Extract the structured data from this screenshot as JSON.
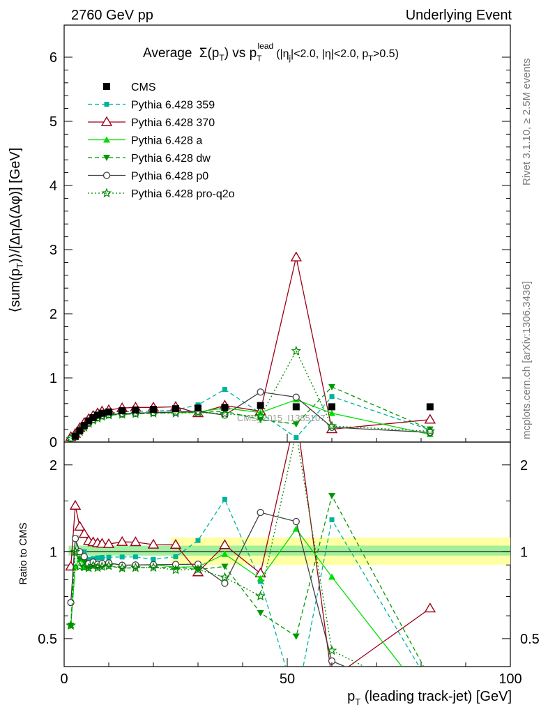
{
  "header": {
    "left": "2760 GeV pp",
    "right": "Underlying Event"
  },
  "plot_title": {
    "main": "Average",
    "sigma": "Σ(p",
    "sub_t": "T",
    "vs": ") vs p",
    "lead_sup": "lead",
    "lead_sub": "T",
    "cuts": "(|η",
    "cuts_sub": "j",
    "cuts_rest": "|<2.0, |η|<2.0, p",
    "cuts_sub2": "T",
    "cuts_end": ">0.5)"
  },
  "side_labels": {
    "rivet": "Rivet 3.1.10, ≥ 2.5M events",
    "mcplots": "mcplots.cern.ch [arXiv:1306.3436]"
  },
  "watermark": "CMS_2015_I1385107",
  "axes": {
    "ylabel_main": "⟨sum(p_T)⟩/[ΔηΔ(Δφ)] [GeV]",
    "ylabel_ratio": "Ratio to CMS",
    "xlabel": "p_T (leading track-jet) [GeV]",
    "x_ticks": [
      "0",
      "50",
      "100"
    ],
    "y_ticks_main": [
      "0",
      "1",
      "2",
      "3",
      "4",
      "5",
      "6"
    ],
    "y_ticks_ratio": [
      "0.5",
      "1",
      "2"
    ]
  },
  "chart_data": {
    "type": "scatter",
    "xlim": [
      0,
      100
    ],
    "ylim": [
      0,
      6.5
    ],
    "ratio_ylim": [
      0.4,
      2.4
    ],
    "ratio_scale": "log",
    "legend_position": "top-left",
    "series": [
      {
        "name": "CMS",
        "color": "#000000",
        "marker": "square-filled",
        "line": "none",
        "x": [
          2.5,
          3.5,
          4.5,
          5.5,
          6.5,
          7.5,
          8.5,
          10,
          13,
          16,
          20,
          25,
          30,
          36,
          44,
          52,
          60,
          82
        ],
        "y": [
          0.09,
          0.18,
          0.26,
          0.33,
          0.38,
          0.42,
          0.45,
          0.47,
          0.49,
          0.5,
          0.51,
          0.52,
          0.53,
          0.54,
          0.57,
          0.55,
          0.55,
          0.55
        ]
      },
      {
        "name": "Pythia 6.428 359",
        "color": "#00b39b",
        "marker": "square-small",
        "line": "dashed",
        "x": [
          1.5,
          2.5,
          3.5,
          4.5,
          5.5,
          6.5,
          7.5,
          8.5,
          10,
          13,
          16,
          20,
          25,
          30,
          36,
          44,
          52,
          60,
          82
        ],
        "y": [
          0.06,
          0.1,
          0.18,
          0.26,
          0.31,
          0.36,
          0.4,
          0.43,
          0.45,
          0.47,
          0.48,
          0.48,
          0.5,
          0.58,
          0.82,
          0.45,
          0.07,
          0.71,
          0.19
        ]
      },
      {
        "name": "Pythia 6.428 370",
        "color": "#9b0019",
        "marker": "triangle-open",
        "line": "solid",
        "x": [
          1.5,
          2.5,
          3.5,
          4.5,
          5.5,
          6.5,
          7.5,
          8.5,
          10,
          13,
          16,
          20,
          25,
          30,
          36,
          44,
          52,
          60,
          82
        ],
        "y": [
          0.08,
          0.13,
          0.22,
          0.3,
          0.36,
          0.41,
          0.45,
          0.48,
          0.5,
          0.53,
          0.54,
          0.54,
          0.55,
          0.45,
          0.57,
          0.48,
          2.88,
          0.2,
          0.35
        ]
      },
      {
        "name": "Pythia 6.428 a",
        "color": "#00dd00",
        "marker": "triangle-filled",
        "line": "solid",
        "x": [
          1.5,
          2.5,
          3.5,
          4.5,
          5.5,
          6.5,
          7.5,
          8.5,
          10,
          13,
          16,
          20,
          25,
          30,
          36,
          44,
          52,
          60,
          82
        ],
        "y": [
          0.05,
          0.08,
          0.17,
          0.23,
          0.3,
          0.35,
          0.38,
          0.41,
          0.43,
          0.44,
          0.45,
          0.46,
          0.46,
          0.47,
          0.53,
          0.46,
          0.66,
          0.45,
          0.12
        ]
      },
      {
        "name": "Pythia 6.428 dw",
        "color": "#009900",
        "marker": "triangle-down-filled",
        "line": "dashed",
        "x": [
          1.5,
          2.5,
          3.5,
          4.5,
          5.5,
          6.5,
          7.5,
          8.5,
          10,
          13,
          16,
          20,
          25,
          30,
          36,
          44,
          52,
          60,
          82
        ],
        "y": [
          0.05,
          0.1,
          0.17,
          0.24,
          0.29,
          0.34,
          0.37,
          0.4,
          0.42,
          0.43,
          0.44,
          0.45,
          0.46,
          0.46,
          0.48,
          0.35,
          0.28,
          0.86,
          0.2
        ]
      },
      {
        "name": "Pythia 6.428 p0",
        "color": "#404040",
        "marker": "circle-open",
        "line": "solid",
        "x": [
          1.5,
          2.5,
          3.5,
          4.5,
          5.5,
          6.5,
          7.5,
          8.5,
          10,
          13,
          16,
          20,
          25,
          30,
          36,
          44,
          52,
          60,
          82
        ],
        "y": [
          0.06,
          0.1,
          0.18,
          0.25,
          0.3,
          0.35,
          0.38,
          0.41,
          0.43,
          0.44,
          0.45,
          0.46,
          0.47,
          0.48,
          0.42,
          0.78,
          0.7,
          0.23,
          0.15
        ]
      },
      {
        "name": "Pythia 6.428 pro-q2o",
        "color": "#008800",
        "marker": "star-open",
        "line": "dotted",
        "x": [
          1.5,
          2.5,
          3.5,
          4.5,
          5.5,
          6.5,
          7.5,
          8.5,
          10,
          13,
          16,
          20,
          25,
          30,
          36,
          44,
          52,
          60,
          82
        ],
        "y": [
          0.05,
          0.09,
          0.16,
          0.23,
          0.29,
          0.34,
          0.37,
          0.4,
          0.42,
          0.43,
          0.44,
          0.45,
          0.45,
          0.46,
          0.44,
          0.4,
          1.42,
          0.25,
          0.17
        ]
      }
    ]
  }
}
